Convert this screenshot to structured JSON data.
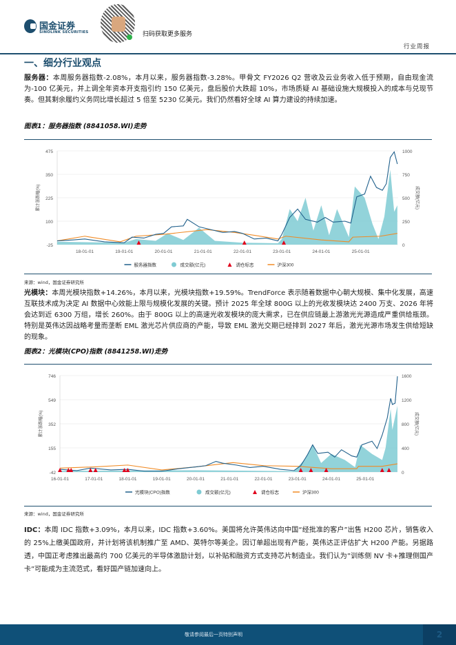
{
  "header": {
    "logo_cn": "国金证券",
    "logo_en": "SINOLINK SECURITIES",
    "scan_text": "扫码获取更多服务",
    "report_type": "行业周报"
  },
  "section_title": "一、细分行业观点",
  "paragraphs": [
    {
      "lead": "服务器：",
      "text": "本周服务器指数-2.08%，本月以来，服务器指数-3.28%。甲骨文 FY2026 Q2 营收及云业务收入低于预期，自由现金流为-100 亿美元，并上调全年资本开支指引约 150 亿美元，盘后股价大跌超 10%，市场质疑 AI 基础设施大规模投入的成本与兑现节奏。但其剩余履约义务同比增长超过 5 倍至 5230 亿美元。我们仍然看好全球 AI 算力建设的持续加速。"
    },
    {
      "lead": "光模块：",
      "text": "本周光模块指数+14.26%，本月以来，光模块指数+19.59%。TrendForce 表示随着数据中心朝大规模、集中化发展，高速互联技术成为决定 AI 数据中心效能上限与规模化发展的关键。预计 2025 年全球 800G 以上的光收发模块达 2400 万支、2026 年将会达到近 6300 万组，增长 260%。由于 800G 以上的高速光收发模块的庞大需求，已在供应链最上游激光光源造成严重供给瓶颈。特别是英伟达因战略考量而垄断 EML 激光芯片供应商的产能，导致 EML 激光交期已经排到 2027 年后，激光光源市场发生供给短缺的现象。"
    },
    {
      "lead": "IDC：",
      "text": "本周 IDC 指数+3.09%，本月以来，IDC 指数+3.60%。美国将允许英伟达向中国“经批准的客户”出售 H200 芯片，销售收入的 25%上缴美国政府，并计划将该机制推广至 AMD、英特尔等美企。因订单超出现有产能，英伟达正评估扩大 H200 产能。另据路透，中国正考虑推出最高约 700 亿美元的半导体激励计划，以补贴和融资方式支持芯片制造业。我们认为”训练侧 NV 卡+推理侧国产卡”可能成为主流范式，看好国产链加速向上。"
    }
  ],
  "source": "来源：wind，国金证券研究所",
  "footer": {
    "notice": "敬请参阅最后一页特别声明",
    "page": "2"
  },
  "colors": {
    "index": "#1f5f8b",
    "volume": "#7fcbd3",
    "marker": "#e0001b",
    "hs300": "#f08a24",
    "brand": "#1d4e6e"
  },
  "chart_data": [
    {
      "type": "line",
      "title": "图表1：服务器指数 (8841058.WI)走势",
      "ylabel": "累计涨跌幅(%)",
      "y2label": "成交额(亿元)",
      "xlim": [
        2017.3,
        2025.95
      ],
      "ylim": [
        -25,
        475
      ],
      "y2lim": [
        0,
        1000
      ],
      "yticks": [
        "475",
        "350",
        "225",
        "100",
        "-25"
      ],
      "y2ticks": [
        "1000",
        "750",
        "500",
        "250",
        "0"
      ],
      "xticks": [
        {
          "v": 2018,
          "label": "18-01-01"
        },
        {
          "v": 2019,
          "label": "19-01-01"
        },
        {
          "v": 2020,
          "label": "20-01-01"
        },
        {
          "v": 2021,
          "label": "21-01-01"
        },
        {
          "v": 2022,
          "label": "22-01-01"
        },
        {
          "v": 2023,
          "label": "23-01-01"
        },
        {
          "v": 2024,
          "label": "24-01-01"
        },
        {
          "v": 2025,
          "label": "25-01-01"
        }
      ],
      "legend": [
        "服务器指数",
        "成交额(亿元)",
        "调仓标志",
        "沪深300"
      ],
      "index": [
        [
          2017.3,
          -5
        ],
        [
          2017.7,
          0
        ],
        [
          2018.0,
          5
        ],
        [
          2018.5,
          -10
        ],
        [
          2019.0,
          -15
        ],
        [
          2019.2,
          15
        ],
        [
          2019.5,
          10
        ],
        [
          2019.8,
          30
        ],
        [
          2020.0,
          35
        ],
        [
          2020.2,
          70
        ],
        [
          2020.5,
          75
        ],
        [
          2020.6,
          110
        ],
        [
          2020.9,
          70
        ],
        [
          2021.2,
          55
        ],
        [
          2021.5,
          40
        ],
        [
          2021.8,
          45
        ],
        [
          2022.0,
          35
        ],
        [
          2022.3,
          5
        ],
        [
          2022.6,
          10
        ],
        [
          2022.9,
          -5
        ],
        [
          2023.0,
          30
        ],
        [
          2023.2,
          120
        ],
        [
          2023.4,
          165
        ],
        [
          2023.6,
          110
        ],
        [
          2023.9,
          95
        ],
        [
          2024.1,
          120
        ],
        [
          2024.3,
          95
        ],
        [
          2024.6,
          100
        ],
        [
          2024.75,
          90
        ],
        [
          2024.9,
          230
        ],
        [
          2025.1,
          245
        ],
        [
          2025.25,
          340
        ],
        [
          2025.4,
          280
        ],
        [
          2025.55,
          265
        ],
        [
          2025.65,
          300
        ],
        [
          2025.75,
          440
        ],
        [
          2025.85,
          470
        ],
        [
          2025.93,
          405
        ]
      ],
      "hs300": [
        [
          2017.3,
          -5
        ],
        [
          2018.0,
          20
        ],
        [
          2018.9,
          -10
        ],
        [
          2019.3,
          20
        ],
        [
          2020.0,
          30
        ],
        [
          2021.1,
          55
        ],
        [
          2021.8,
          40
        ],
        [
          2022.3,
          25
        ],
        [
          2022.9,
          5
        ],
        [
          2023.1,
          20
        ],
        [
          2024.0,
          0
        ],
        [
          2024.7,
          -10
        ],
        [
          2024.8,
          15
        ],
        [
          2025.5,
          20
        ],
        [
          2025.93,
          35
        ]
      ],
      "volume": [
        [
          2017.3,
          30
        ],
        [
          2019.0,
          20
        ],
        [
          2019.3,
          60
        ],
        [
          2019.8,
          40
        ],
        [
          2020.1,
          120
        ],
        [
          2020.5,
          50
        ],
        [
          2020.9,
          180
        ],
        [
          2021.3,
          40
        ],
        [
          2022.0,
          20
        ],
        [
          2022.9,
          15
        ],
        [
          2023.0,
          60
        ],
        [
          2023.2,
          380
        ],
        [
          2023.4,
          250
        ],
        [
          2023.6,
          500
        ],
        [
          2023.8,
          150
        ],
        [
          2024.0,
          420
        ],
        [
          2024.2,
          100
        ],
        [
          2024.4,
          380
        ],
        [
          2024.7,
          80
        ],
        [
          2024.85,
          620
        ],
        [
          2025.1,
          500
        ],
        [
          2025.3,
          220
        ],
        [
          2025.45,
          60
        ],
        [
          2025.6,
          300
        ],
        [
          2025.75,
          800
        ],
        [
          2025.85,
          350
        ],
        [
          2025.93,
          420
        ]
      ],
      "markers": [
        2019.37,
        2022.05,
        2023.05
      ]
    },
    {
      "type": "line",
      "title": "图表2：光模块(CPO)指数 (8841258.WI)走势",
      "ylabel": "累计涨跌幅(%)",
      "y2label": "成交额(亿元)",
      "xlim": [
        2016.0,
        2025.95
      ],
      "ylim": [
        -42,
        746
      ],
      "y2lim": [
        0,
        1600
      ],
      "yticks": [
        "746",
        "549",
        "352",
        "155",
        "-42"
      ],
      "y2ticks": [
        "1600",
        "1200",
        "800",
        "400",
        "0"
      ],
      "xticks": [
        {
          "v": 2016,
          "label": "16-01-01"
        },
        {
          "v": 2017,
          "label": "17-01-01"
        },
        {
          "v": 2018,
          "label": "18-01-01"
        },
        {
          "v": 2019,
          "label": "19-01-01"
        },
        {
          "v": 2020,
          "label": "20-01-01"
        },
        {
          "v": 2021,
          "label": "21-01-01"
        },
        {
          "v": 2022,
          "label": "22-01-01"
        },
        {
          "v": 2023,
          "label": "23-01-01"
        },
        {
          "v": 2024,
          "label": "24-01-01"
        },
        {
          "v": 2025,
          "label": "25-01-01"
        }
      ],
      "legend": [
        "光模块(CPO)指数",
        "成交额(亿元)",
        "调仓标志",
        "沪深300"
      ],
      "index": [
        [
          2016.0,
          -20
        ],
        [
          2016.5,
          -30
        ],
        [
          2016.9,
          -10
        ],
        [
          2017.5,
          -25
        ],
        [
          2018.0,
          -20
        ],
        [
          2018.5,
          -35
        ],
        [
          2019.0,
          -35
        ],
        [
          2019.5,
          -15
        ],
        [
          2020.0,
          0
        ],
        [
          2020.3,
          10
        ],
        [
          2020.6,
          45
        ],
        [
          2020.8,
          30
        ],
        [
          2021.2,
          15
        ],
        [
          2021.6,
          -5
        ],
        [
          2022.0,
          5
        ],
        [
          2022.5,
          -20
        ],
        [
          2022.9,
          -30
        ],
        [
          2023.1,
          10
        ],
        [
          2023.3,
          100
        ],
        [
          2023.45,
          180
        ],
        [
          2023.6,
          110
        ],
        [
          2023.9,
          120
        ],
        [
          2024.1,
          80
        ],
        [
          2024.3,
          140
        ],
        [
          2024.6,
          90
        ],
        [
          2024.75,
          80
        ],
        [
          2024.9,
          180
        ],
        [
          2025.2,
          210
        ],
        [
          2025.35,
          150
        ],
        [
          2025.5,
          260
        ],
        [
          2025.65,
          400
        ],
        [
          2025.75,
          560
        ],
        [
          2025.8,
          510
        ],
        [
          2025.88,
          520
        ],
        [
          2025.95,
          740
        ]
      ],
      "hs300": [
        [
          2016.0,
          -10
        ],
        [
          2017.0,
          0
        ],
        [
          2018.0,
          15
        ],
        [
          2019.0,
          -25
        ],
        [
          2020.0,
          0
        ],
        [
          2021.1,
          35
        ],
        [
          2022.0,
          10
        ],
        [
          2023.0,
          5
        ],
        [
          2024.0,
          -15
        ],
        [
          2024.75,
          -15
        ],
        [
          2024.8,
          5
        ],
        [
          2025.5,
          5
        ],
        [
          2025.95,
          25
        ]
      ],
      "volume": [
        [
          2016.0,
          20
        ],
        [
          2020.0,
          30
        ],
        [
          2022.9,
          15
        ],
        [
          2023.2,
          200
        ],
        [
          2023.45,
          450
        ],
        [
          2023.7,
          150
        ],
        [
          2024.0,
          300
        ],
        [
          2024.4,
          200
        ],
        [
          2024.7,
          80
        ],
        [
          2024.85,
          450
        ],
        [
          2025.2,
          300
        ],
        [
          2025.5,
          200
        ],
        [
          2025.6,
          400
        ],
        [
          2025.75,
          1050
        ],
        [
          2025.8,
          700
        ],
        [
          2025.95,
          1100
        ]
      ],
      "markers": [
        2016.0,
        2016.25,
        2016.33,
        2016.9,
        2017.05,
        2017.9,
        2018.0,
        2023.1,
        2023.4,
        2023.85,
        2025.5,
        2025.7
      ]
    }
  ]
}
